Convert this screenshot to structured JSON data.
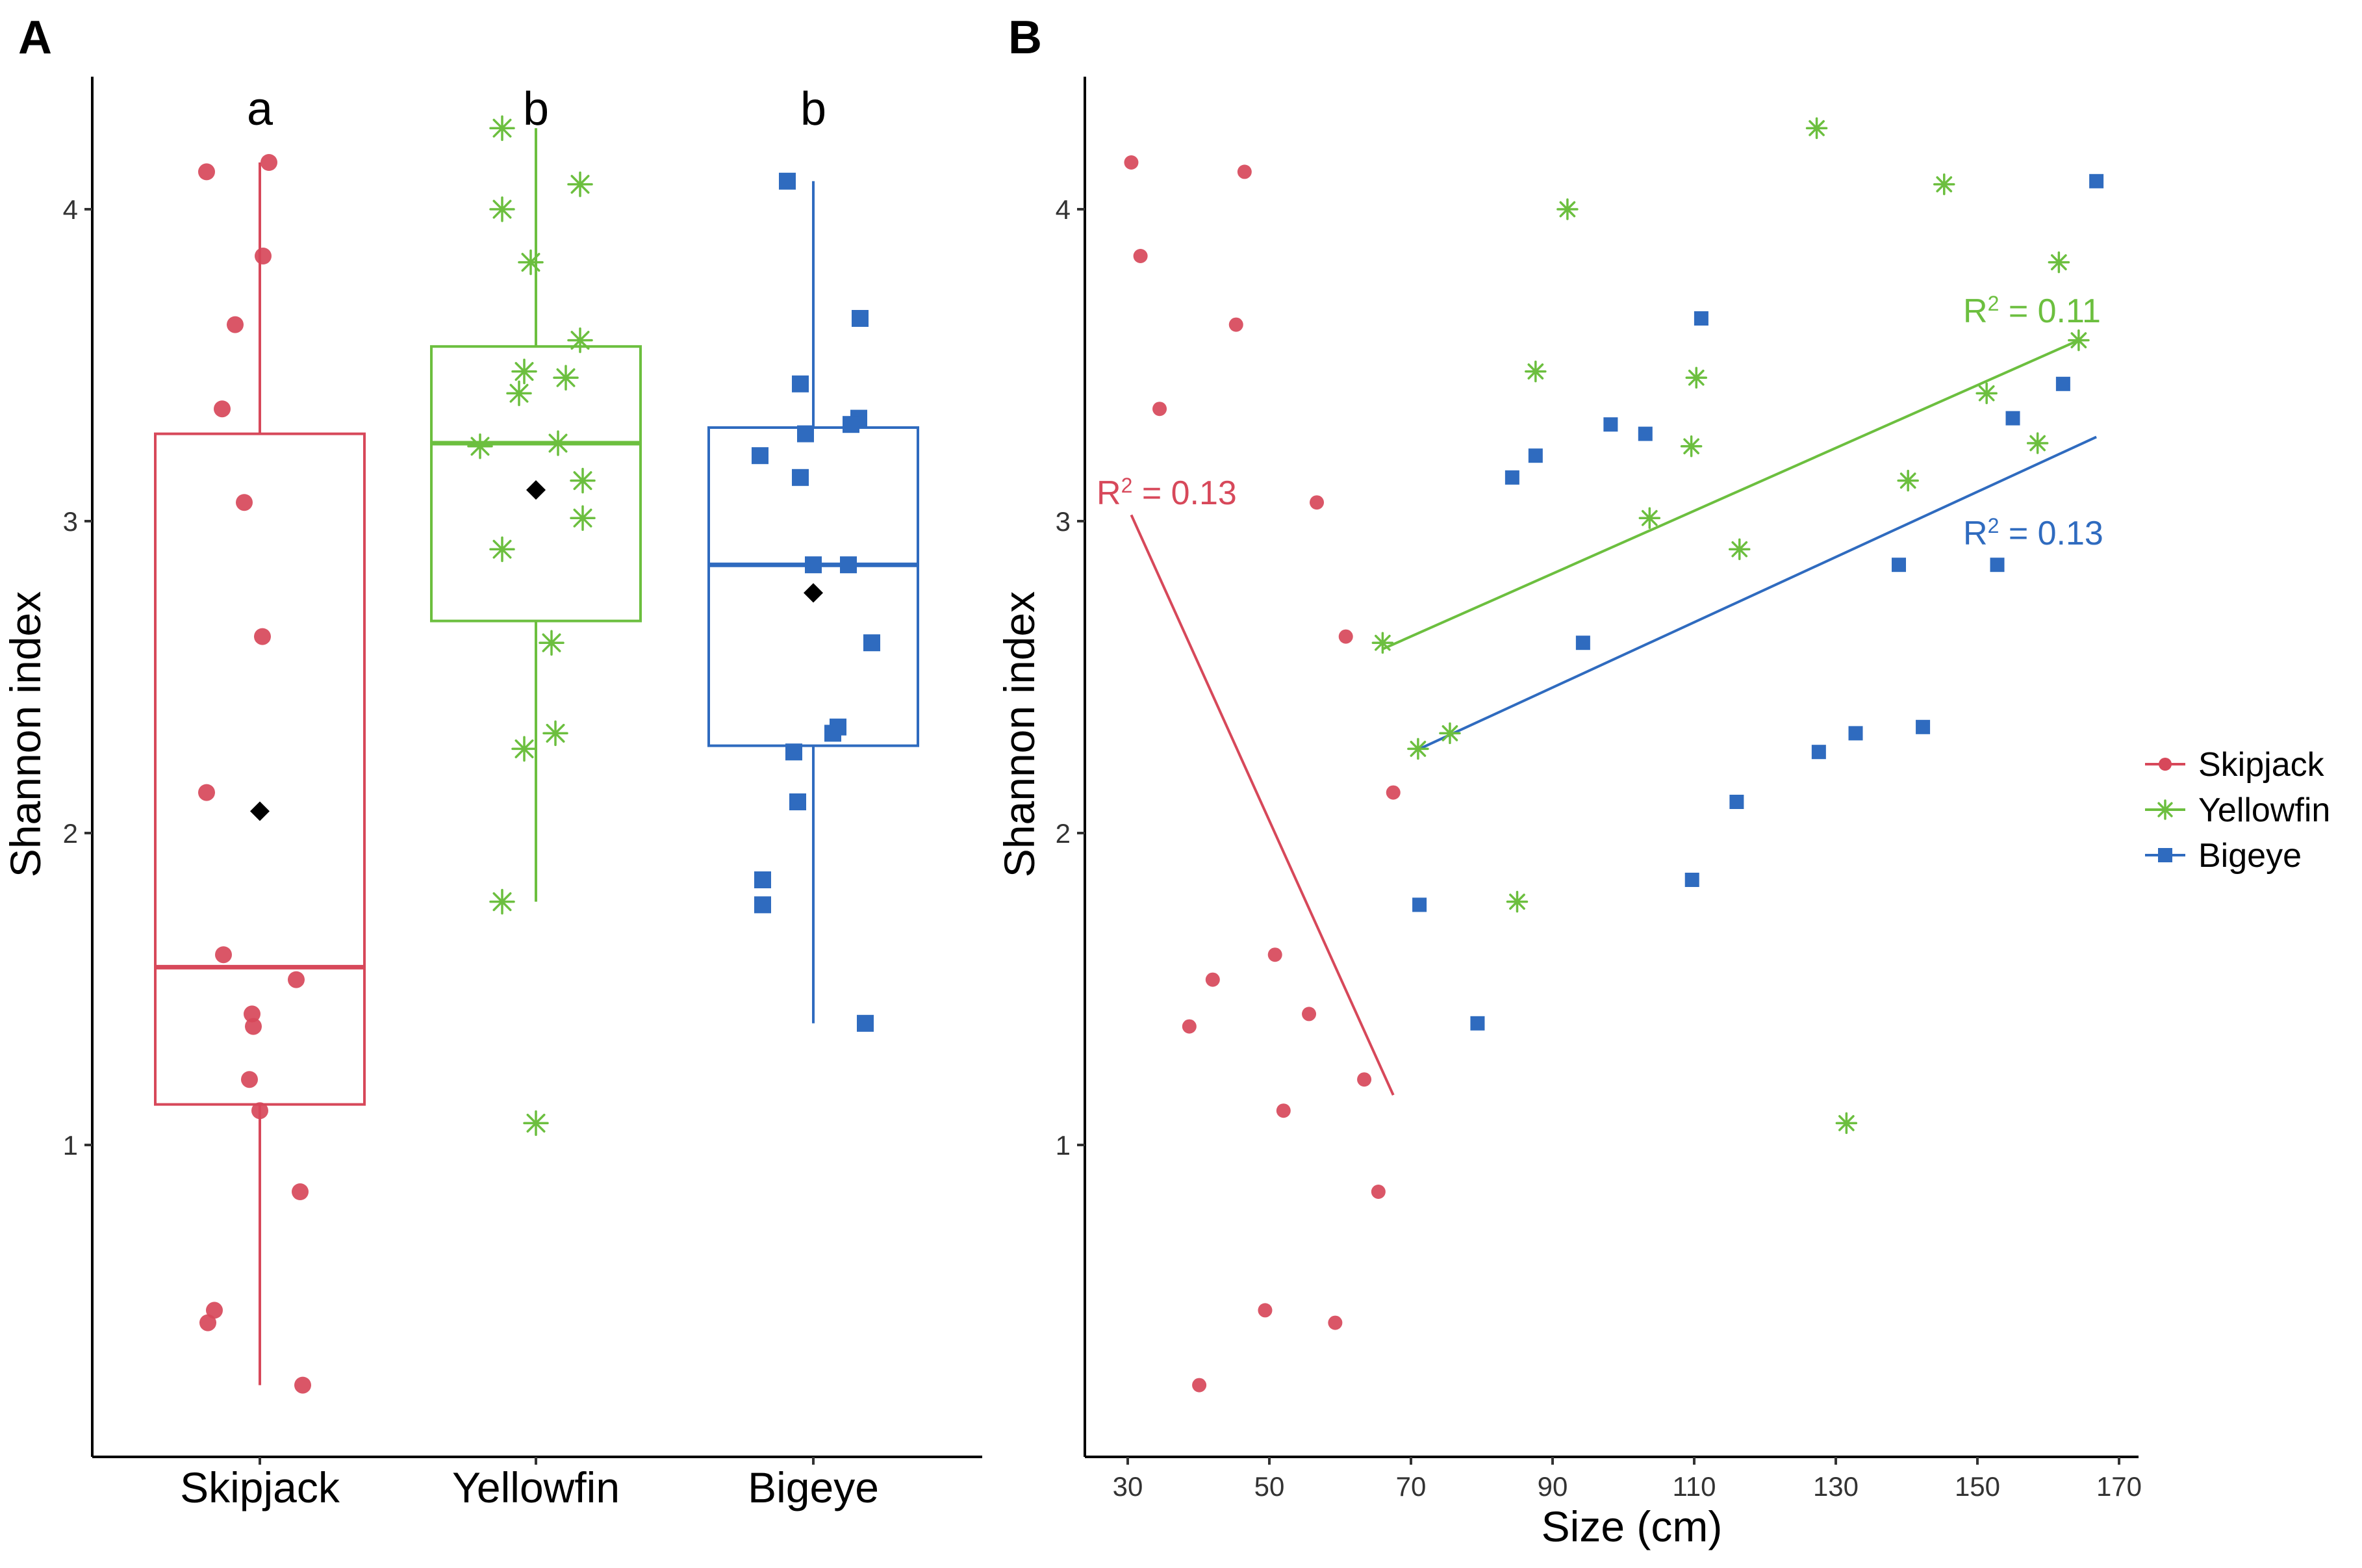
{
  "figure": {
    "panel_a_label": "A",
    "panel_b_label": "B"
  },
  "legend": {
    "items": [
      {
        "name": "Skipjack",
        "color": "#d7485a",
        "shape": "circle"
      },
      {
        "name": "Yellowfin",
        "color": "#6cbf3f",
        "shape": "asterisk"
      },
      {
        "name": "Bigeye",
        "color": "#2f6bbf",
        "shape": "square"
      }
    ]
  },
  "chart_data": [
    {
      "type": "box",
      "panel": "A",
      "title": "",
      "xlabel": "",
      "ylabel": "Shannon index",
      "ylim": [
        0.0,
        4.5
      ],
      "yticks": [
        1,
        2,
        3,
        4
      ],
      "grid": false,
      "categories": [
        "Skipjack",
        "Yellowfin",
        "Bigeye"
      ],
      "significance_letters": [
        "a",
        "b",
        "b"
      ],
      "series": [
        {
          "name": "Skipjack",
          "color": "#d7485a",
          "shape": "circle",
          "box": {
            "min": 0.23,
            "q1": 1.13,
            "median": 1.57,
            "q3": 3.28,
            "max": 4.15,
            "mean": 2.07
          },
          "points": [
            4.12,
            4.15,
            3.85,
            3.63,
            3.36,
            3.06,
            2.63,
            2.13,
            1.61,
            1.53,
            1.42,
            1.38,
            1.21,
            1.11,
            0.85,
            0.47,
            0.43,
            0.23
          ]
        },
        {
          "name": "Yellowfin",
          "color": "#6cbf3f",
          "shape": "asterisk",
          "box": {
            "min": 1.78,
            "q1": 2.68,
            "median": 3.25,
            "q3": 3.56,
            "max": 4.26,
            "mean": 3.1
          },
          "points": [
            4.26,
            4.08,
            4.0,
            3.83,
            3.58,
            3.48,
            3.46,
            3.41,
            3.25,
            3.24,
            3.13,
            3.01,
            2.91,
            2.61,
            2.32,
            2.27,
            1.78,
            1.07
          ]
        },
        {
          "name": "Bigeye",
          "color": "#2f6bbf",
          "shape": "square",
          "box": {
            "min": 1.39,
            "q1": 2.28,
            "median": 2.86,
            "q3": 3.3,
            "max": 4.09,
            "mean": 2.77
          },
          "points": [
            4.09,
            3.65,
            3.44,
            3.33,
            3.31,
            3.28,
            3.21,
            3.14,
            2.86,
            2.86,
            2.61,
            2.34,
            2.32,
            2.26,
            2.1,
            1.85,
            1.77,
            1.39
          ]
        }
      ]
    },
    {
      "type": "scatter",
      "panel": "B",
      "title": "",
      "xlabel": "Size (cm)",
      "ylabel": "Shannon index",
      "xlim": [
        24,
        174
      ],
      "ylim": [
        0.0,
        4.5
      ],
      "xticks": [
        30,
        50,
        70,
        90,
        110,
        130,
        150,
        170
      ],
      "yticks": [
        1,
        2,
        3,
        4
      ],
      "grid": false,
      "series": [
        {
          "name": "Skipjack",
          "color": "#d7485a",
          "shape": "circle",
          "x": [
            30.5,
            31.8,
            34.5,
            38.7,
            40.1,
            42.0,
            45.3,
            46.5,
            49.4,
            50.8,
            52.0,
            55.6,
            56.7,
            59.3,
            60.8,
            63.4,
            65.4,
            67.5
          ],
          "y": [
            4.15,
            3.85,
            3.36,
            1.38,
            0.23,
            1.53,
            3.63,
            4.12,
            0.47,
            1.61,
            1.11,
            1.42,
            3.06,
            0.43,
            2.63,
            1.21,
            0.85,
            2.13
          ],
          "fit": {
            "x": [
              30.5,
              67.5
            ],
            "y": [
              3.02,
              1.16
            ]
          },
          "r2_value": "= 0.13"
        },
        {
          "name": "Yellowfin",
          "color": "#6cbf3f",
          "shape": "asterisk",
          "x": [
            66.0,
            71.0,
            75.5,
            85.0,
            87.6,
            92.1,
            103.7,
            109.6,
            110.3,
            116.4,
            127.3,
            131.5,
            140.2,
            145.3,
            151.3,
            158.5,
            161.5,
            164.3
          ],
          "y": [
            2.61,
            2.27,
            2.32,
            1.78,
            3.48,
            4.0,
            3.01,
            3.24,
            3.46,
            2.91,
            4.26,
            1.07,
            3.13,
            4.08,
            3.41,
            3.25,
            3.83,
            3.58
          ],
          "fit": {
            "x": [
              66.0,
              164.3
            ],
            "y": [
              2.59,
              3.58
            ]
          },
          "r2_value": "= 0.11"
        },
        {
          "name": "Bigeye",
          "color": "#2f6bbf",
          "shape": "square",
          "x": [
            71.2,
            79.4,
            84.3,
            87.6,
            94.3,
            98.2,
            103.1,
            109.7,
            111.0,
            116.0,
            127.6,
            132.8,
            138.9,
            142.3,
            152.8,
            155.0,
            162.1,
            166.8
          ],
          "y": [
            1.77,
            1.39,
            3.14,
            3.21,
            2.61,
            3.31,
            3.28,
            1.85,
            3.65,
            2.1,
            2.26,
            2.32,
            2.86,
            2.34,
            2.86,
            3.33,
            3.44,
            4.09
          ],
          "fit": {
            "x": [
              71.2,
              166.8
            ],
            "y": [
              2.27,
              3.27
            ]
          },
          "r2_value": "= 0.13"
        }
      ]
    }
  ]
}
